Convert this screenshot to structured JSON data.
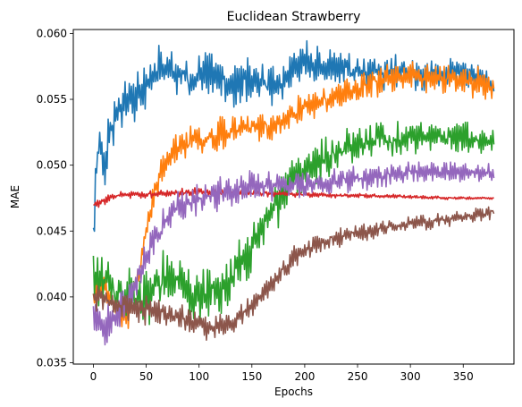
{
  "chart_data": {
    "type": "line",
    "title": "Euclidean Strawberry",
    "xlabel": "Epochs",
    "ylabel": "MAE",
    "xlim": [
      -19,
      398
    ],
    "ylim": [
      0.0349,
      0.0603
    ],
    "xticks": [
      0,
      50,
      100,
      150,
      200,
      250,
      300,
      350
    ],
    "xtick_labels": [
      "0",
      "50",
      "100",
      "150",
      "200",
      "250",
      "300",
      "350"
    ],
    "yticks": [
      0.035,
      0.04,
      0.045,
      0.05,
      0.055,
      0.06
    ],
    "ytick_labels": [
      "0.035",
      "0.040",
      "0.045",
      "0.050",
      "0.055",
      "0.060"
    ],
    "grid": false,
    "legend": "none",
    "x_range": [
      0,
      379
    ],
    "series": [
      {
        "color": "#1f77b4",
        "keyframes": [
          [
            0,
            0.045
          ],
          [
            2,
            0.048
          ],
          [
            5,
            0.0525
          ],
          [
            10,
            0.05
          ],
          [
            15,
            0.0525
          ],
          [
            25,
            0.0545
          ],
          [
            40,
            0.0555
          ],
          [
            50,
            0.056
          ],
          [
            60,
            0.0575
          ],
          [
            70,
            0.0575
          ],
          [
            90,
            0.0565
          ],
          [
            110,
            0.057
          ],
          [
            130,
            0.056
          ],
          [
            150,
            0.0565
          ],
          [
            175,
            0.056
          ],
          [
            200,
            0.058
          ],
          [
            230,
            0.0575
          ],
          [
            260,
            0.057
          ],
          [
            290,
            0.057
          ],
          [
            320,
            0.0568
          ],
          [
            350,
            0.057
          ],
          [
            370,
            0.0565
          ],
          [
            379,
            0.056
          ]
        ],
        "noise": [
          0.002,
          0.001
        ],
        "seed": 11
      },
      {
        "color": "#ff7f0e",
        "keyframes": [
          [
            0,
            0.04
          ],
          [
            10,
            0.041
          ],
          [
            25,
            0.0385
          ],
          [
            35,
            0.039
          ],
          [
            45,
            0.0425
          ],
          [
            55,
            0.047
          ],
          [
            65,
            0.0495
          ],
          [
            75,
            0.051
          ],
          [
            100,
            0.052
          ],
          [
            125,
            0.0525
          ],
          [
            150,
            0.053
          ],
          [
            175,
            0.053
          ],
          [
            200,
            0.0545
          ],
          [
            225,
            0.055
          ],
          [
            250,
            0.056
          ],
          [
            275,
            0.0565
          ],
          [
            300,
            0.0568
          ],
          [
            325,
            0.0565
          ],
          [
            350,
            0.0565
          ],
          [
            379,
            0.056
          ]
        ],
        "noise": [
          0.0012,
          0.0011
        ],
        "seed": 23
      },
      {
        "color": "#2ca02c",
        "keyframes": [
          [
            0,
            0.042
          ],
          [
            15,
            0.0405
          ],
          [
            40,
            0.0395
          ],
          [
            70,
            0.0415
          ],
          [
            100,
            0.04
          ],
          [
            125,
            0.041
          ],
          [
            140,
            0.0425
          ],
          [
            155,
            0.0445
          ],
          [
            170,
            0.0465
          ],
          [
            185,
            0.0485
          ],
          [
            200,
            0.0495
          ],
          [
            220,
            0.0505
          ],
          [
            240,
            0.0515
          ],
          [
            260,
            0.052
          ],
          [
            290,
            0.052
          ],
          [
            320,
            0.052
          ],
          [
            350,
            0.0522
          ],
          [
            379,
            0.0518
          ]
        ],
        "noise": [
          0.0025,
          0.001
        ],
        "seed": 37
      },
      {
        "color": "#d62728",
        "keyframes": [
          [
            0,
            0.047
          ],
          [
            20,
            0.0477
          ],
          [
            60,
            0.0478
          ],
          [
            100,
            0.048
          ],
          [
            140,
            0.0479
          ],
          [
            180,
            0.0478
          ],
          [
            220,
            0.0477
          ],
          [
            260,
            0.0477
          ],
          [
            300,
            0.0476
          ],
          [
            340,
            0.0475
          ],
          [
            379,
            0.0475
          ]
        ],
        "noise": [
          0.00035,
          8e-05
        ],
        "seed": 53
      },
      {
        "color": "#9467bd",
        "keyframes": [
          [
            0,
            0.0385
          ],
          [
            10,
            0.0375
          ],
          [
            25,
            0.039
          ],
          [
            40,
            0.041
          ],
          [
            55,
            0.044
          ],
          [
            75,
            0.0465
          ],
          [
            100,
            0.0475
          ],
          [
            125,
            0.048
          ],
          [
            150,
            0.0485
          ],
          [
            175,
            0.0485
          ],
          [
            200,
            0.0485
          ],
          [
            225,
            0.0487
          ],
          [
            250,
            0.049
          ],
          [
            275,
            0.0492
          ],
          [
            300,
            0.0495
          ],
          [
            325,
            0.0495
          ],
          [
            350,
            0.0495
          ],
          [
            379,
            0.0495
          ]
        ],
        "noise": [
          0.0015,
          0.0007
        ],
        "seed": 71
      },
      {
        "color": "#8c564b",
        "keyframes": [
          [
            0,
            0.04
          ],
          [
            20,
            0.0395
          ],
          [
            50,
            0.039
          ],
          [
            80,
            0.0385
          ],
          [
            110,
            0.0375
          ],
          [
            130,
            0.038
          ],
          [
            150,
            0.0395
          ],
          [
            170,
            0.041
          ],
          [
            190,
            0.043
          ],
          [
            210,
            0.044
          ],
          [
            230,
            0.0445
          ],
          [
            260,
            0.045
          ],
          [
            290,
            0.0455
          ],
          [
            320,
            0.0457
          ],
          [
            350,
            0.046
          ],
          [
            379,
            0.0465
          ]
        ],
        "noise": [
          0.0012,
          0.0005
        ],
        "seed": 89
      }
    ]
  }
}
